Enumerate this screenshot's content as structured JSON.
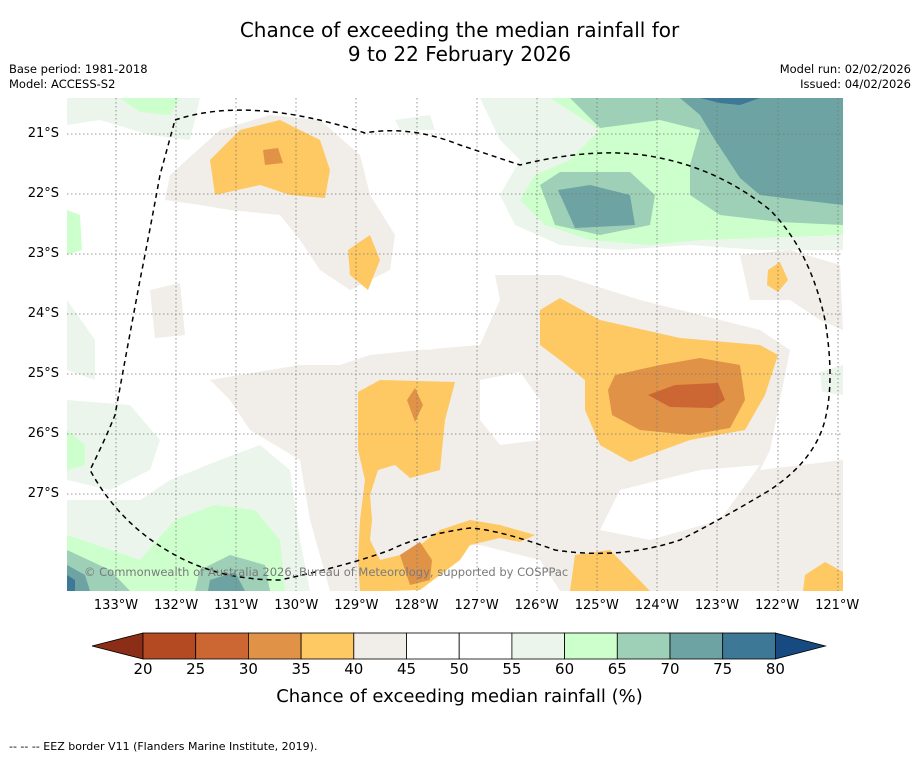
{
  "title": {
    "line1": "Chance of exceeding the median rainfall for",
    "line2": "9 to 22 February 2026"
  },
  "meta": {
    "base_period": "Base period: 1981-2018",
    "model": "Model: ACCESS-S2",
    "model_run": "Model run: 02/02/2026",
    "issued": "Issued: 04/02/2026"
  },
  "map": {
    "latitudes": [
      "21°S",
      "22°S",
      "23°S",
      "24°S",
      "25°S",
      "26°S",
      "27°S"
    ],
    "longitudes": [
      "133°W",
      "132°W",
      "131°W",
      "130°W",
      "129°W",
      "128°W",
      "127°W",
      "126°W",
      "125°W",
      "124°W",
      "123°W",
      "122°W",
      "121°W"
    ],
    "copyright": "© Commonwealth of Australia 2026, Bureau of Meteorology, supported by COSPPac"
  },
  "colorbar": {
    "ticks": [
      "20",
      "25",
      "30",
      "35",
      "40",
      "45",
      "50",
      "55",
      "60",
      "65",
      "70",
      "75",
      "80"
    ],
    "colors": [
      "#8c2d18",
      "#b34a22",
      "#cc6633",
      "#e09346",
      "#fec962",
      "#f1ede8",
      "#ffffff",
      "#ffffff",
      "#ebf5eb",
      "#ccffcc",
      "#9ecfb7",
      "#6ea3a3",
      "#3d7896",
      "#174a80"
    ],
    "title": "Chance of exceeding median rainfall (%)"
  },
  "footer": {
    "eez_note": "--  --  -- EEZ border V11 (Flanders Marine Institute, 2019)."
  }
}
